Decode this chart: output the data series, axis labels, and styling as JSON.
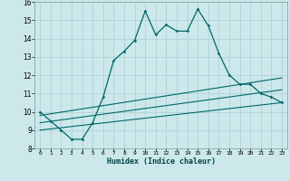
{
  "xlabel": "Humidex (Indice chaleur)",
  "ylabel": "",
  "bg_color": "#cce8eb",
  "grid_color": "#aacdd2",
  "line_color": "#006868",
  "xlim": [
    -0.5,
    23.5
  ],
  "ylim": [
    8,
    16
  ],
  "xticks": [
    0,
    1,
    2,
    3,
    4,
    5,
    6,
    7,
    8,
    9,
    10,
    11,
    12,
    13,
    14,
    15,
    16,
    17,
    18,
    19,
    20,
    21,
    22,
    23
  ],
  "yticks": [
    8,
    9,
    10,
    11,
    12,
    13,
    14,
    15,
    16
  ],
  "main_x": [
    0,
    1,
    2,
    3,
    4,
    5,
    6,
    7,
    8,
    9,
    10,
    11,
    12,
    13,
    14,
    15,
    16,
    17,
    18,
    19,
    20,
    21,
    22,
    23
  ],
  "main_y": [
    10.0,
    9.5,
    9.0,
    8.5,
    8.5,
    9.4,
    10.8,
    12.8,
    13.3,
    13.9,
    15.5,
    14.2,
    14.75,
    14.4,
    14.4,
    15.6,
    14.7,
    13.2,
    12.0,
    11.5,
    11.5,
    11.0,
    10.8,
    10.5
  ],
  "line2_x": [
    0,
    23
  ],
  "line2_y": [
    9.0,
    10.5
  ],
  "line3_x": [
    0,
    23
  ],
  "line3_y": [
    9.4,
    11.2
  ],
  "line4_x": [
    0,
    23
  ],
  "line4_y": [
    9.8,
    11.85
  ]
}
